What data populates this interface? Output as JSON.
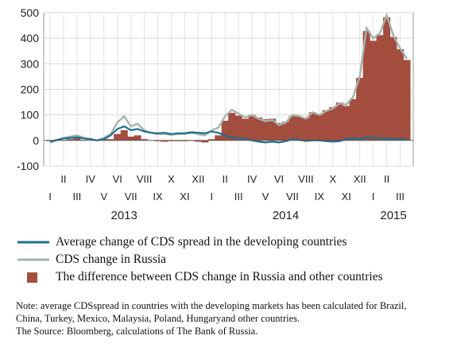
{
  "chart_data": {
    "type": "line",
    "ylim": [
      -100,
      500
    ],
    "y_ticks": [
      -100,
      0,
      100,
      200,
      300,
      400,
      500
    ],
    "month_labels_upper": [
      "II",
      "IV",
      "VI",
      "VIII",
      "X",
      "XII",
      "II",
      "IV",
      "VI",
      "VIII",
      "X",
      "XII",
      "II"
    ],
    "month_labels_lower": [
      "I",
      "III",
      "V",
      "VII",
      "IX",
      "XI",
      "I",
      "III",
      "V",
      "VII",
      "IX",
      "XI",
      "I",
      "III"
    ],
    "year_labels": [
      "2013",
      "2014",
      "2015"
    ],
    "x_period": "January 2013 – March 2015 (months)",
    "x": [
      0,
      0.5,
      1,
      1.5,
      2,
      2.5,
      3,
      3.5,
      4,
      4.5,
      5,
      5.5,
      6,
      6.5,
      7,
      7.5,
      8,
      8.5,
      9,
      9.5,
      10,
      10.5,
      11,
      11.5,
      12,
      12.5,
      13,
      13.5,
      14,
      14.5,
      15,
      15.5,
      16,
      16.5,
      17,
      17.5,
      18,
      18.5,
      19,
      19.5,
      20,
      20.5,
      21,
      21.5,
      22,
      22.5,
      23,
      23.5,
      24,
      24.5,
      25,
      25.5,
      26,
      26.5
    ],
    "series": [
      {
        "name": "Average change of CDS spread in the developing countries",
        "color": "#1f6f8b",
        "values": [
          -5,
          2,
          8,
          10,
          12,
          8,
          5,
          0,
          5,
          20,
          45,
          55,
          40,
          45,
          35,
          30,
          28,
          30,
          25,
          28,
          28,
          32,
          30,
          28,
          35,
          30,
          18,
          12,
          8,
          5,
          0,
          -5,
          -8,
          -5,
          -8,
          -3,
          5,
          2,
          -2,
          0,
          0,
          -3,
          -5,
          -3,
          5,
          8,
          5,
          12,
          10,
          8,
          8,
          5,
          3,
          5
        ]
      },
      {
        "name": "CDS change in Russia",
        "color": "#a6b2ad",
        "values": [
          -8,
          0,
          10,
          15,
          20,
          10,
          5,
          0,
          10,
          25,
          70,
          95,
          55,
          65,
          40,
          30,
          25,
          25,
          22,
          25,
          25,
          30,
          25,
          20,
          40,
          50,
          95,
          120,
          105,
          90,
          100,
          85,
          75,
          80,
          60,
          70,
          100,
          95,
          85,
          110,
          100,
          115,
          125,
          145,
          140,
          170,
          250,
          440,
          400,
          420,
          490,
          410,
          360,
          320
        ]
      },
      {
        "name": "The difference between CDS change in Russia and other countries",
        "color": "#a34d3f",
        "values": [
          -3,
          -2,
          2,
          5,
          8,
          2,
          0,
          0,
          5,
          5,
          25,
          40,
          15,
          20,
          5,
          0,
          -3,
          -5,
          -3,
          -3,
          -3,
          -2,
          -5,
          -8,
          5,
          20,
          77,
          108,
          97,
          85,
          100,
          90,
          83,
          85,
          68,
          73,
          95,
          93,
          87,
          110,
          100,
          118,
          130,
          148,
          135,
          162,
          245,
          428,
          390,
          412,
          482,
          405,
          357,
          315
        ]
      }
    ]
  },
  "legend": [
    {
      "label": "Average change of CDS spread in the developing countries",
      "swatch": "line",
      "color": "#1f6f8b"
    },
    {
      "label": "CDS change in Russia",
      "swatch": "line",
      "color": "#a6b2ad"
    },
    {
      "label": "The difference between CDS change in Russia and other countries",
      "swatch": "box",
      "color": "#a34d3f"
    }
  ],
  "note": {
    "line1": "Note: average CDSspread in countries with the developing markets has been calculated for Brazil,",
    "line2": "China, Turkey, Mexico, Malaysia, Poland, Hungaryand other countries.",
    "line3": "The Source: Bloomberg, calculations of The Bank of Russia."
  }
}
